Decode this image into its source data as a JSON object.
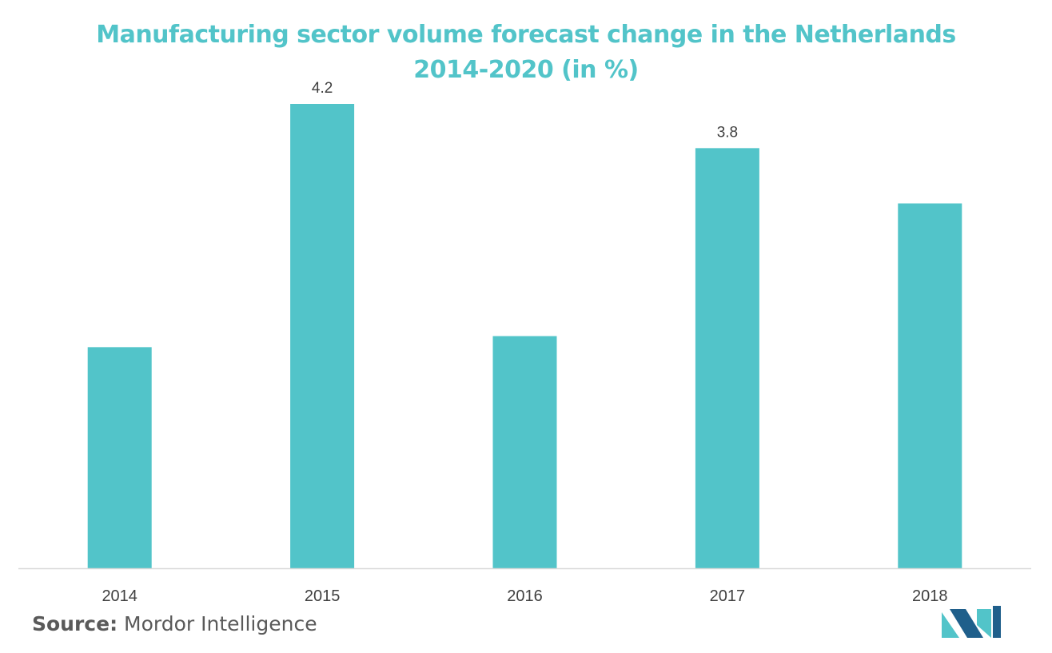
{
  "colors": {
    "accent": "#52c4c9",
    "title": "#52c4c9",
    "axis": "#d9d9d9",
    "label": "#404040",
    "logo_dark": "#1f5f8b",
    "logo_light": "#52c4c9"
  },
  "chart_data": {
    "type": "bar",
    "title": "Manufacturing sector volume forecast change in the Netherlands",
    "subtitle": "2014-2020 (in %)",
    "categories": [
      "2014",
      "2015",
      "2016",
      "2017",
      "2018"
    ],
    "values": [
      2.0,
      4.2,
      2.1,
      3.8,
      3.3
    ],
    "data_labels": [
      "",
      "4.2",
      "",
      "3.8",
      ""
    ],
    "xlabel": "",
    "ylabel": "",
    "ylim": [
      0,
      4.2
    ],
    "grid": false,
    "legend": "none"
  },
  "source": {
    "label": "Source:",
    "text": "Mordor Intelligence"
  },
  "logo": {
    "icon": "mordor-intelligence-logo-icon"
  }
}
